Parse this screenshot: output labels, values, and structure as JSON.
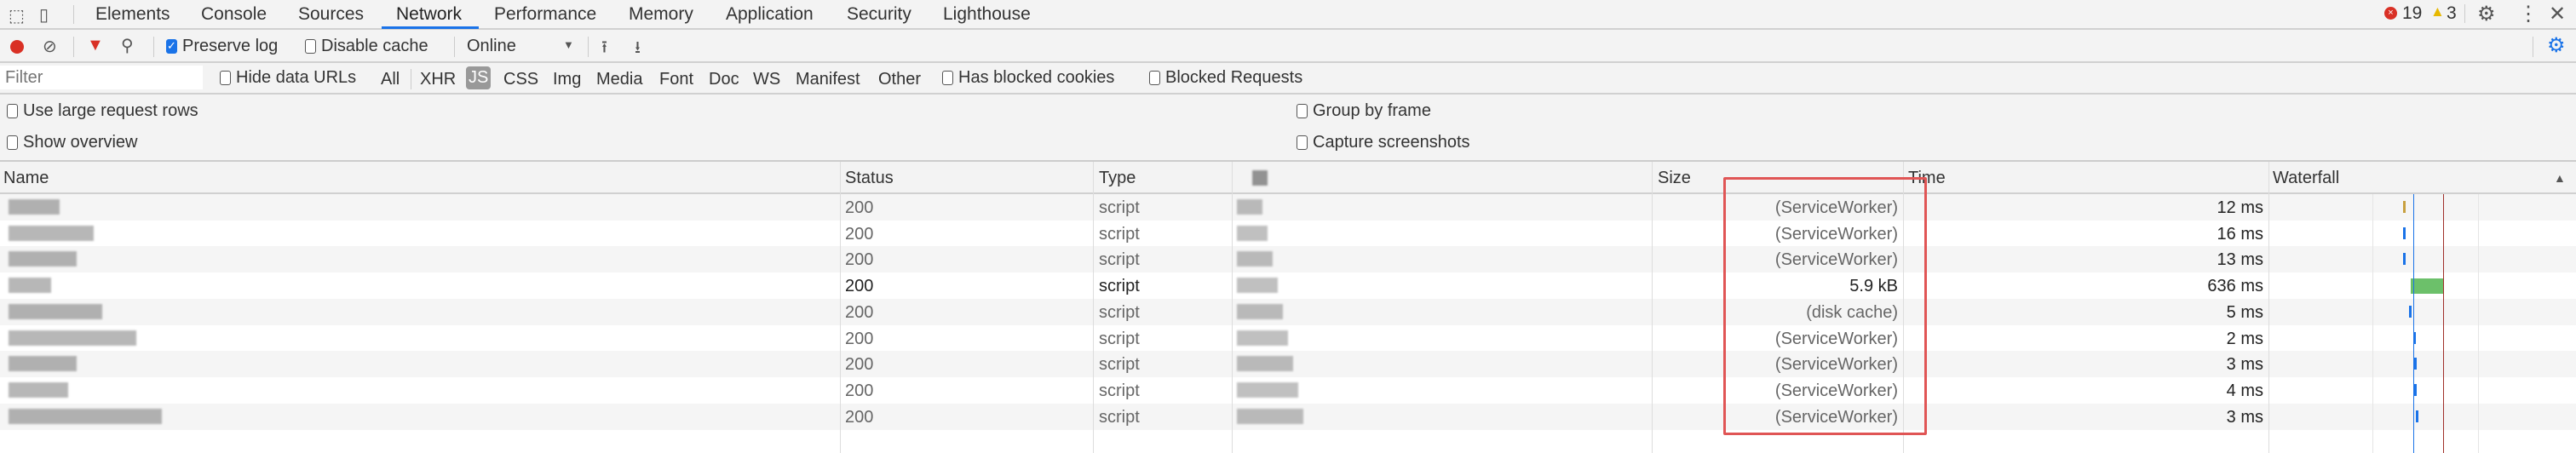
{
  "tabs": [
    "Elements",
    "Console",
    "Sources",
    "Network",
    "Performance",
    "Memory",
    "Application",
    "Security",
    "Lighthouse"
  ],
  "active_tab": "Network",
  "status": {
    "errors": "19",
    "warnings": "3"
  },
  "toolbar": {
    "preserve_log": "Preserve log",
    "preserve_log_checked": true,
    "disable_cache": "Disable cache",
    "disable_cache_checked": false,
    "throttle": "Online"
  },
  "filter": {
    "placeholder": "Filter",
    "hide_data_urls": "Hide data URLs",
    "types": [
      "All",
      "XHR",
      "JS",
      "CSS",
      "Img",
      "Media",
      "Font",
      "Doc",
      "WS",
      "Manifest",
      "Other"
    ],
    "active_type": "JS",
    "has_blocked_cookies": "Has blocked cookies",
    "blocked_requests": "Blocked Requests"
  },
  "options": {
    "large_rows": "Use large request rows",
    "show_overview": "Show overview",
    "group_by_frame": "Group by frame",
    "capture_screenshots": "Capture screenshots"
  },
  "columns": {
    "name": "Name",
    "status": "Status",
    "type": "Type",
    "size": "Size",
    "time": "Time",
    "waterfall": "Waterfall"
  },
  "rows": [
    {
      "status": "200",
      "type": "script",
      "size": "(ServiceWorker)",
      "time": "12 ms",
      "cached": true
    },
    {
      "status": "200",
      "type": "script",
      "size": "(ServiceWorker)",
      "time": "16 ms",
      "cached": true
    },
    {
      "status": "200",
      "type": "script",
      "size": "(ServiceWorker)",
      "time": "13 ms",
      "cached": true
    },
    {
      "status": "200",
      "type": "script",
      "size": "5.9 kB",
      "time": "636 ms",
      "cached": false
    },
    {
      "status": "200",
      "type": "script",
      "size": "(disk cache)",
      "time": "5 ms",
      "cached": true
    },
    {
      "status": "200",
      "type": "script",
      "size": "(ServiceWorker)",
      "time": "2 ms",
      "cached": true
    },
    {
      "status": "200",
      "type": "script",
      "size": "(ServiceWorker)",
      "time": "3 ms",
      "cached": true
    },
    {
      "status": "200",
      "type": "script",
      "size": "(ServiceWorker)",
      "time": "4 ms",
      "cached": true
    },
    {
      "status": "200",
      "type": "script",
      "size": "(ServiceWorker)",
      "time": "3 ms",
      "cached": true
    }
  ],
  "colors": {
    "accent": "#1a73e8",
    "highlight_box": "#e05555",
    "record": "#d93025",
    "waterfall_green": "#6cc06a"
  }
}
